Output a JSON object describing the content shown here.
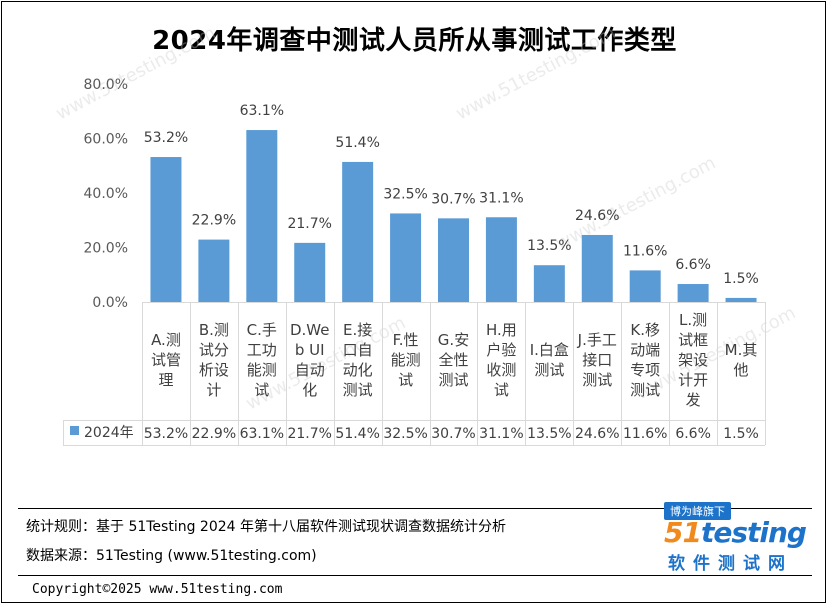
{
  "title": "2024年调查中测试人员所从事测试工作类型",
  "chart_data": {
    "type": "bar",
    "title": "2024年调查中测试人员所从事测试工作类型",
    "categories": [
      "A.测试管理",
      "B.测试分析设计",
      "C.手工功能测试",
      "D.Web UI自动化",
      "E.接口自动化测试",
      "F.性能测试",
      "G.安全性测试",
      "H.用户验收测试",
      "I.白盒测试",
      "J.手工接口测试",
      "K.移动端专项测试",
      "L.测试框架设计开发",
      "M.其他"
    ],
    "category_lines": [
      [
        "A.测",
        "试管",
        "理"
      ],
      [
        "B.测",
        "试分",
        "析设",
        "计"
      ],
      [
        "C.手",
        "工功",
        "能测",
        "试"
      ],
      [
        "D.We",
        "b UI",
        "自动",
        "化"
      ],
      [
        "E.接",
        "口自",
        "动化",
        "测试"
      ],
      [
        "F.性",
        "能测",
        "试"
      ],
      [
        "G.安",
        "全性",
        "测试"
      ],
      [
        "H.用",
        "户验",
        "收测",
        "试"
      ],
      [
        "I.白盒",
        "测试"
      ],
      [
        "J.手工",
        "接口",
        "测试"
      ],
      [
        "K.移",
        "动端",
        "专项",
        "测试"
      ],
      [
        "L.测",
        "试框",
        "架设",
        "计开",
        "发"
      ],
      [
        "M.其",
        "他"
      ]
    ],
    "series": [
      {
        "name": "2024年",
        "values": [
          53.2,
          22.9,
          63.1,
          21.7,
          51.4,
          32.5,
          30.7,
          31.1,
          13.5,
          24.6,
          11.6,
          6.6,
          1.5
        ],
        "labels": [
          "53.2%",
          "22.9%",
          "63.1%",
          "21.7%",
          "51.4%",
          "32.5%",
          "30.7%",
          "31.1%",
          "13.5%",
          "24.6%",
          "11.6%",
          "6.6%",
          "1.5%"
        ],
        "color": "#5b9bd5"
      }
    ],
    "ylim": [
      0,
      80
    ],
    "yticks": [
      "0.0%",
      "20.0%",
      "40.0%",
      "60.0%",
      "80.0%"
    ],
    "ytick_values": [
      0,
      20,
      40,
      60,
      80
    ],
    "xlabel": "",
    "ylabel": "",
    "grid": false,
    "data_table": true
  },
  "watermark": "www.51testing.com",
  "footer": {
    "rule": "统计规则：基于 51Testing 2024 年第十八届软件测试现状调查数据统计分析",
    "source": "数据来源：51Testing (www.51testing.com)",
    "copyright": "Copyright©2025 www.51testing.com"
  },
  "logo": {
    "tag": "博为峰旗下",
    "num": "51",
    "name": "testing",
    "sub": "软件测试网"
  }
}
